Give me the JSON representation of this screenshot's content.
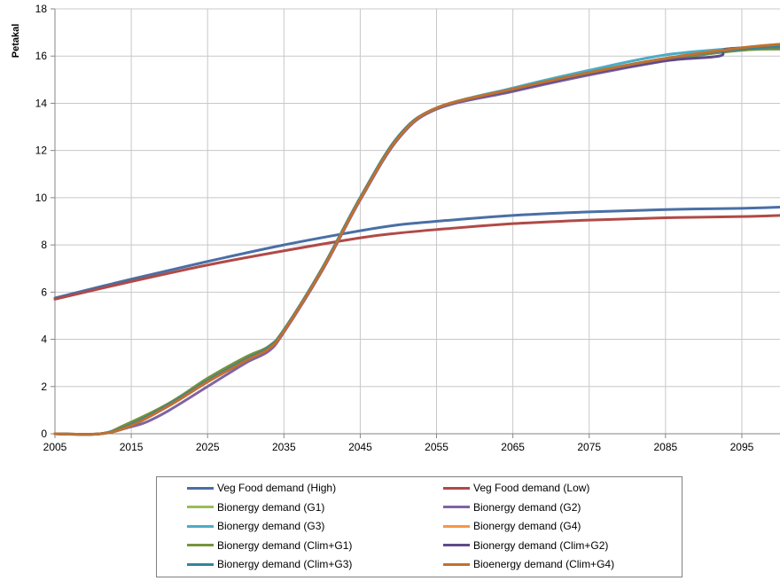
{
  "chart_data": {
    "type": "line",
    "title": "",
    "xlabel": "",
    "ylabel": "Petakal",
    "xlim": [
      2005,
      2100
    ],
    "ylim": [
      0,
      18
    ],
    "x_ticks": [
      2005,
      2015,
      2025,
      2035,
      2045,
      2055,
      2065,
      2075,
      2085,
      2095
    ],
    "y_ticks": [
      0,
      2,
      4,
      6,
      8,
      10,
      12,
      14,
      16,
      18
    ],
    "grid": true,
    "legend_position": "bottom",
    "series": [
      {
        "name": "Veg Food demand (High)",
        "color": "#4a6fa5",
        "x": [
          2005,
          2015,
          2025,
          2035,
          2045,
          2050,
          2055,
          2065,
          2075,
          2085,
          2095,
          2100
        ],
        "y": [
          5.75,
          6.55,
          7.3,
          8.0,
          8.6,
          8.85,
          9.0,
          9.25,
          9.4,
          9.5,
          9.55,
          9.6
        ]
      },
      {
        "name": "Veg Food demand (Low)",
        "color": "#b04a47",
        "x": [
          2005,
          2015,
          2025,
          2035,
          2045,
          2050,
          2055,
          2065,
          2075,
          2085,
          2095,
          2100
        ],
        "y": [
          5.7,
          6.45,
          7.15,
          7.75,
          8.3,
          8.5,
          8.65,
          8.9,
          9.05,
          9.15,
          9.2,
          9.25
        ]
      },
      {
        "name": "Bionergy demand (G1)",
        "color": "#9bbb59",
        "x": [
          2005,
          2011,
          2015,
          2020,
          2025,
          2030,
          2033,
          2035,
          2040,
          2045,
          2050,
          2055,
          2065,
          2075,
          2085,
          2095,
          2100
        ],
        "y": [
          0,
          0,
          0.4,
          1.3,
          2.3,
          3.2,
          3.7,
          4.4,
          7.0,
          10.0,
          12.6,
          13.8,
          14.6,
          15.3,
          15.9,
          16.25,
          16.3
        ]
      },
      {
        "name": "Bionergy demand (G2)",
        "color": "#8064a2",
        "x": [
          2005,
          2011,
          2015,
          2017,
          2020,
          2025,
          2030,
          2033,
          2035,
          2040,
          2045,
          2050,
          2055,
          2065,
          2075,
          2085,
          2095,
          2100
        ],
        "y": [
          0,
          0,
          0.3,
          0.5,
          1.0,
          2.0,
          3.0,
          3.5,
          4.3,
          6.9,
          9.9,
          12.5,
          13.75,
          14.5,
          15.2,
          15.8,
          16.3,
          16.4
        ]
      },
      {
        "name": "Bionergy demand (G3)",
        "color": "#4bacc6",
        "x": [
          2005,
          2011,
          2015,
          2020,
          2025,
          2030,
          2033,
          2035,
          2040,
          2045,
          2050,
          2055,
          2065,
          2075,
          2085,
          2095,
          2100
        ],
        "y": [
          0,
          0,
          0.45,
          1.3,
          2.3,
          3.2,
          3.7,
          4.4,
          7.0,
          10.0,
          12.6,
          13.8,
          14.65,
          15.4,
          16.05,
          16.35,
          16.45
        ]
      },
      {
        "name": "Bionergy demand (G4)",
        "color": "#f79646",
        "x": [
          2005,
          2011,
          2015,
          2020,
          2025,
          2030,
          2033,
          2035,
          2040,
          2045,
          2050,
          2055,
          2065,
          2075,
          2085,
          2095,
          2100
        ],
        "y": [
          0,
          0,
          0.4,
          1.2,
          2.2,
          3.1,
          3.6,
          4.35,
          6.95,
          9.95,
          12.55,
          13.8,
          14.6,
          15.3,
          15.9,
          16.35,
          16.5
        ]
      },
      {
        "name": "Bionergy demand (Clim+G1)",
        "color": "#77933c",
        "x": [
          2005,
          2011,
          2014,
          2020,
          2025,
          2030,
          2033,
          2035,
          2040,
          2045,
          2050,
          2055,
          2065,
          2075,
          2085,
          2095,
          2100
        ],
        "y": [
          0,
          0,
          0.35,
          1.3,
          2.35,
          3.25,
          3.7,
          4.4,
          7.0,
          10.0,
          12.6,
          13.8,
          14.6,
          15.3,
          15.85,
          16.25,
          16.3
        ]
      },
      {
        "name": "Bionergy demand (Clim+G2)",
        "color": "#5f4a8b",
        "x": [
          2005,
          2011,
          2015,
          2020,
          2025,
          2030,
          2033,
          2035,
          2040,
          2045,
          2050,
          2055,
          2065,
          2075,
          2085,
          2092,
          2093,
          2100
        ],
        "y": [
          0,
          0,
          0.35,
          1.2,
          2.2,
          3.1,
          3.6,
          4.35,
          6.95,
          9.95,
          12.55,
          13.8,
          14.55,
          15.25,
          15.8,
          16.0,
          16.3,
          16.4
        ]
      },
      {
        "name": "Bionergy demand (Clim+G3)",
        "color": "#31859c",
        "x": [
          2005,
          2011,
          2015,
          2020,
          2025,
          2030,
          2033,
          2035,
          2040,
          2045,
          2050,
          2055,
          2065,
          2075,
          2085,
          2095,
          2100
        ],
        "y": [
          0,
          0,
          0.4,
          1.25,
          2.25,
          3.15,
          3.65,
          4.4,
          7.0,
          10.0,
          12.6,
          13.8,
          14.6,
          15.3,
          15.9,
          16.3,
          16.4
        ]
      },
      {
        "name": "Bioenergy demand (Clim+G4)",
        "color": "#c0712f",
        "x": [
          2005,
          2011,
          2015,
          2020,
          2025,
          2030,
          2033,
          2035,
          2040,
          2045,
          2050,
          2055,
          2065,
          2075,
          2085,
          2095,
          2100
        ],
        "y": [
          0,
          0,
          0.35,
          1.2,
          2.2,
          3.1,
          3.6,
          4.35,
          6.95,
          9.95,
          12.55,
          13.8,
          14.6,
          15.3,
          15.9,
          16.35,
          16.5
        ]
      }
    ]
  }
}
